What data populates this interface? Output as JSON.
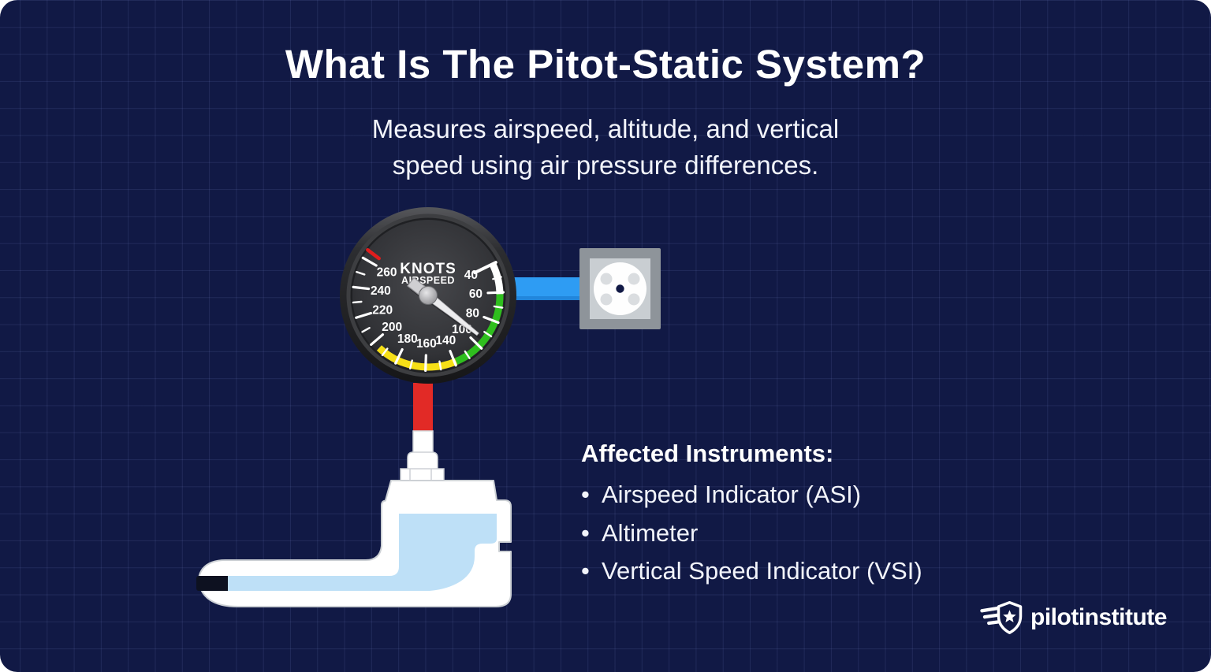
{
  "header": {
    "title": "What Is The Pitot-Static System?",
    "subtitle1": "Measures airspeed, altitude, and vertical",
    "subtitle2": "speed using air pressure differences."
  },
  "gauge": {
    "unit_label": "KNOTS",
    "name_label": "AIRSPEED",
    "dial_labels": [
      "40",
      "60",
      "80",
      "100",
      "140",
      "160",
      "180",
      "200",
      "220",
      "240",
      "260"
    ],
    "dial_angles": [
      64,
      87.6,
      111.2,
      134.8,
      158.4,
      182,
      205.6,
      229.2,
      252.8,
      276.4,
      300
    ],
    "needle_angle": 128,
    "arcs": [
      {
        "name": "low-speed-white-arc",
        "start": 64,
        "end": 89,
        "color": "#ffffff"
      },
      {
        "name": "green-arc",
        "start": 89,
        "end": 157,
        "color": "#2fbf1e"
      },
      {
        "name": "yellow-arc",
        "start": 157,
        "end": 223,
        "color": "#f6df17"
      }
    ],
    "redline_angle": 307,
    "redline_color": "#e01d1d",
    "tick_color": "#ffffff",
    "label_color": "#ffffff"
  },
  "diagram_colors": {
    "static_line_blue": "#2e9cf3",
    "static_line_blue_shade": "#2186dc",
    "pitot_line_red": "#e22a26",
    "pitot_inner_blue": "#bee0f7",
    "pitot_body_white": "#ffffff",
    "pitot_outline_gray": "#cdd1d5",
    "pitot_opening_black": "#0d1120",
    "port_outer_gray": "#8e949a",
    "port_inner_gray": "#c9ced2",
    "port_screw_gray": "#dadde0",
    "port_center_navy": "#111945"
  },
  "instruments": {
    "heading": "Affected Instruments:",
    "bullet": "•",
    "items": [
      "Airspeed Indicator (ASI)",
      "Altimeter",
      "Vertical Speed Indicator (VSI)"
    ]
  },
  "logo": {
    "text": "pilotinstitute"
  }
}
